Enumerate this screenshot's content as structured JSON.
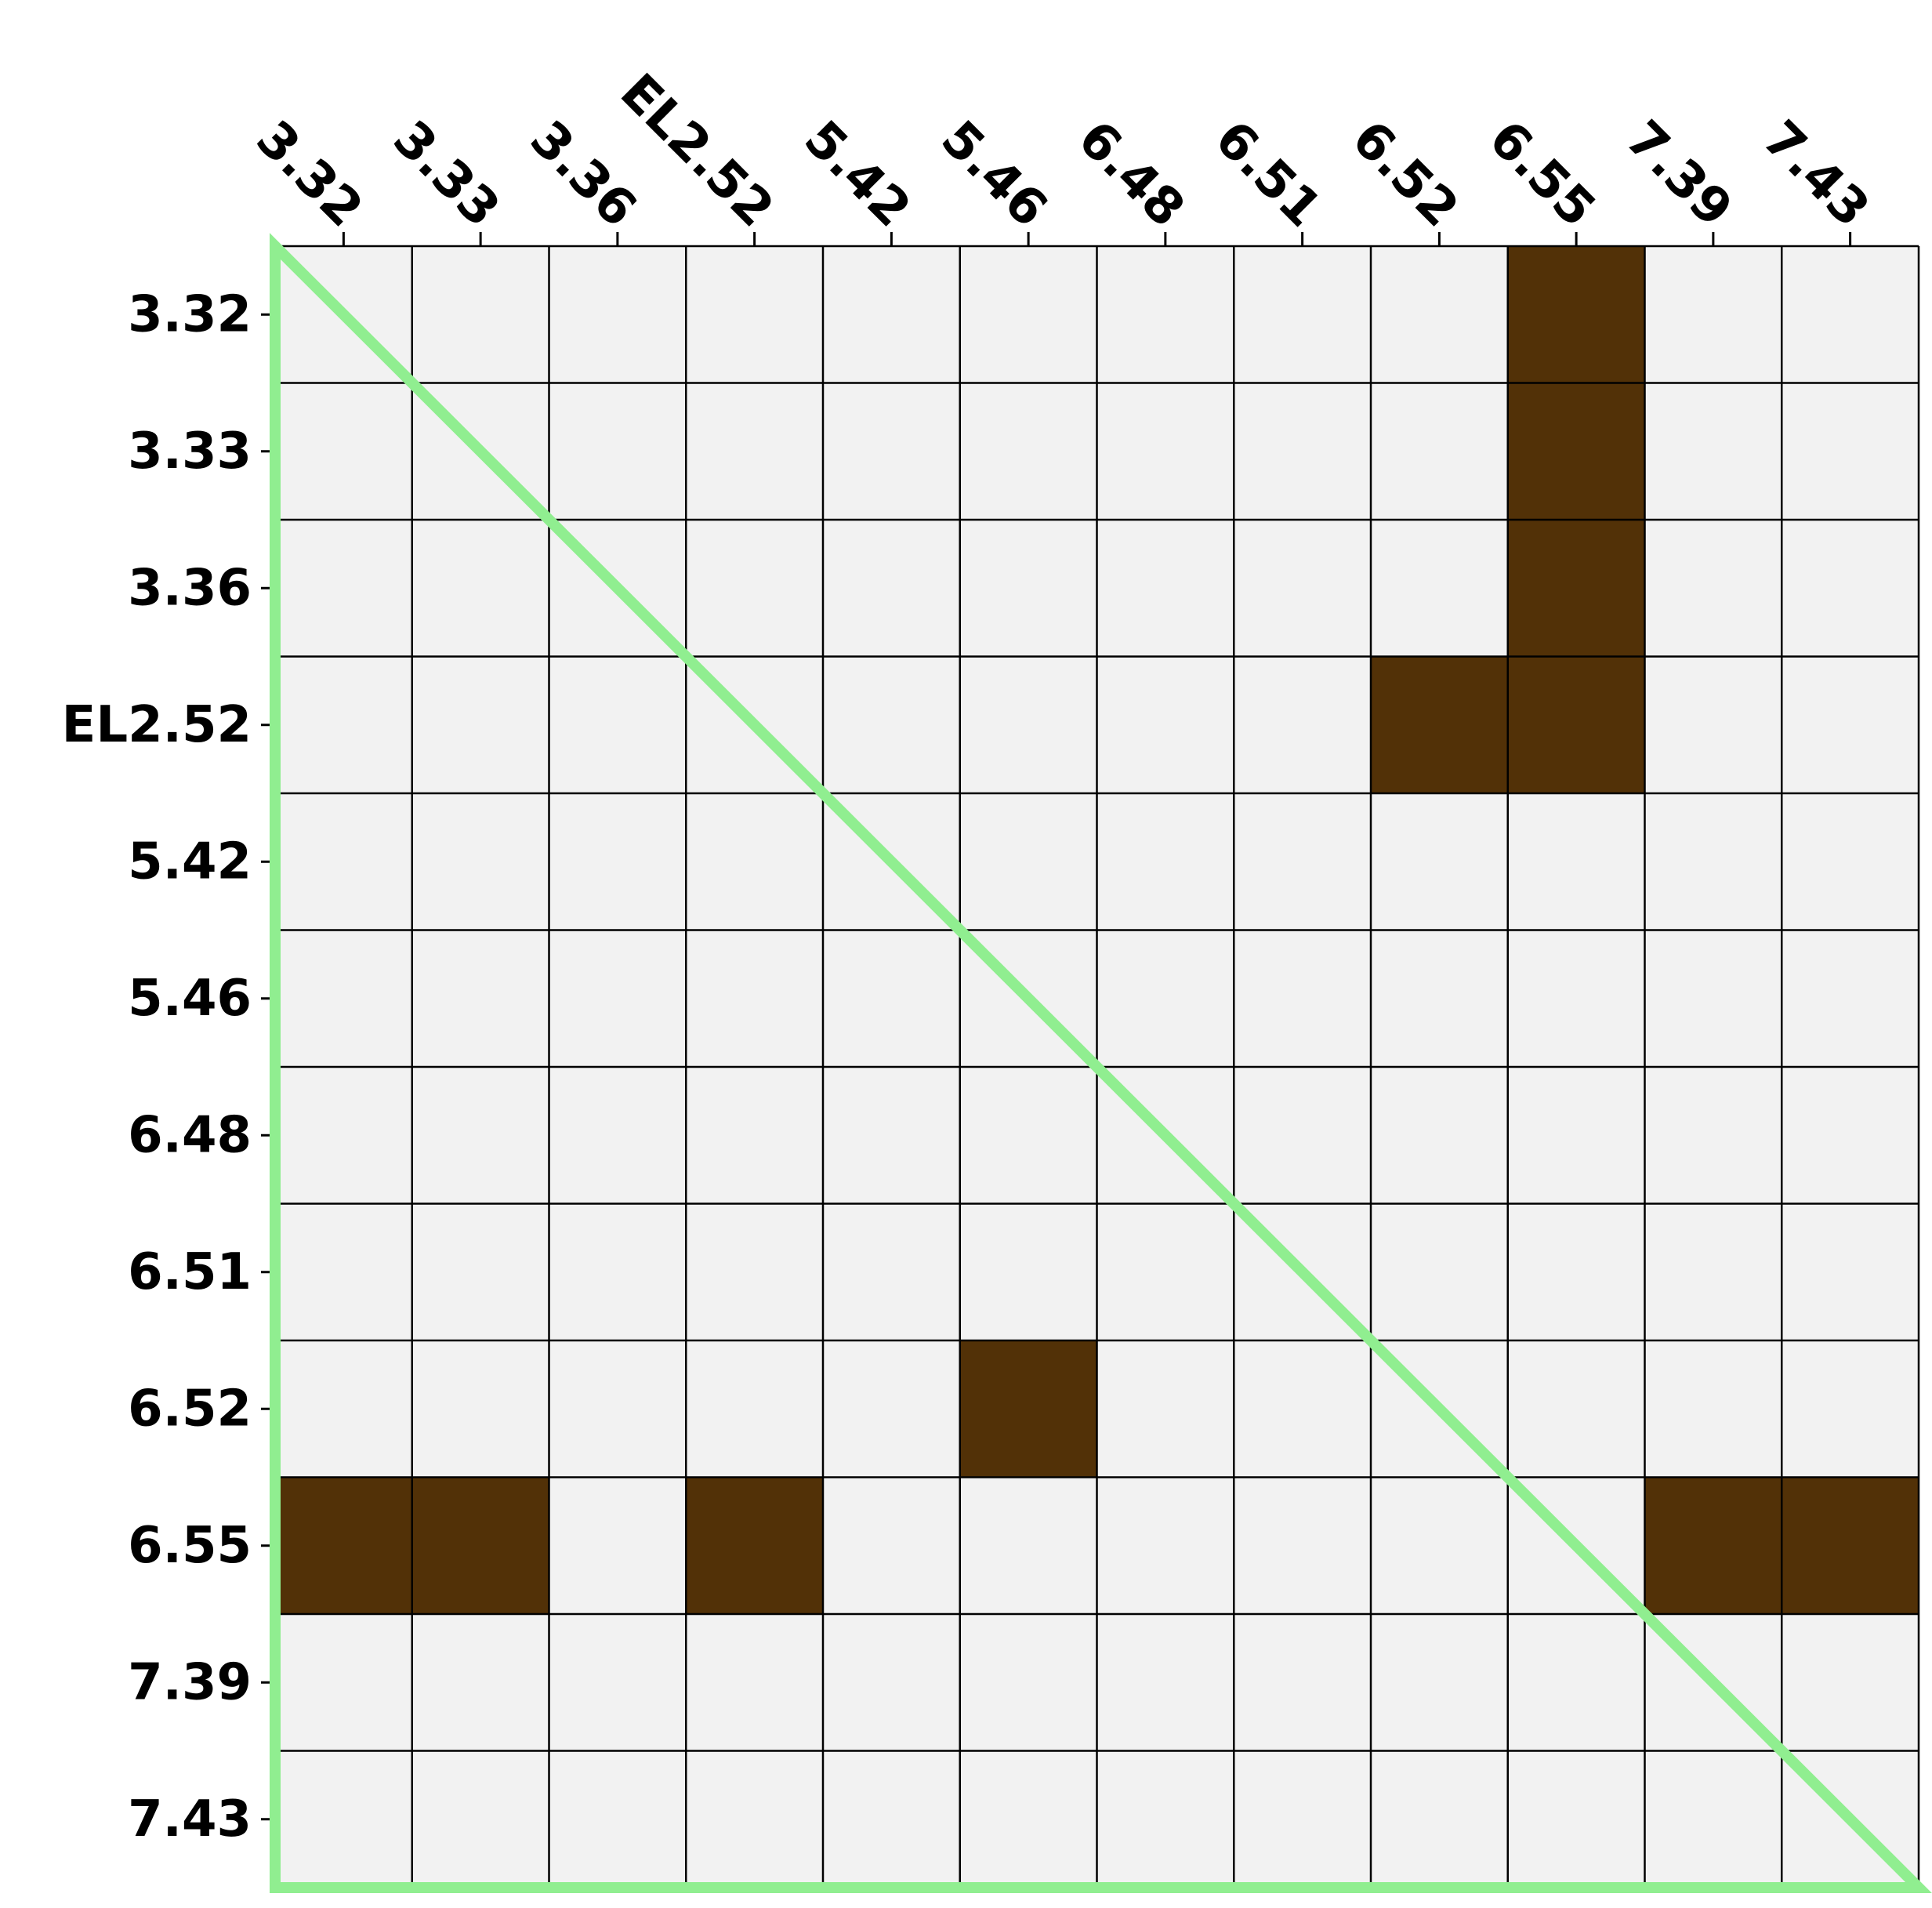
{
  "chart_data": {
    "type": "heatmap",
    "title": "",
    "xlabel": "",
    "ylabel": "",
    "x_tick_position": "top",
    "x_tick_rotation": "-45",
    "categories": [
      "3.32",
      "3.33",
      "3.36",
      "EL2.52",
      "5.42",
      "5.46",
      "6.48",
      "6.51",
      "6.52",
      "6.55",
      "7.39",
      "7.43"
    ],
    "values": [
      [
        0,
        0,
        0,
        0,
        0,
        0,
        0,
        0,
        0,
        1,
        0,
        0
      ],
      [
        0,
        0,
        0,
        0,
        0,
        0,
        0,
        0,
        0,
        1,
        0,
        0
      ],
      [
        0,
        0,
        0,
        0,
        0,
        0,
        0,
        0,
        0,
        1,
        0,
        0
      ],
      [
        0,
        0,
        0,
        0,
        0,
        0,
        0,
        0,
        1,
        1,
        0,
        0
      ],
      [
        0,
        0,
        0,
        0,
        0,
        0,
        0,
        0,
        0,
        0,
        0,
        0
      ],
      [
        0,
        0,
        0,
        0,
        0,
        0,
        0,
        0,
        0,
        0,
        0,
        0
      ],
      [
        0,
        0,
        0,
        0,
        0,
        0,
        0,
        0,
        0,
        0,
        0,
        0
      ],
      [
        0,
        0,
        0,
        0,
        0,
        0,
        0,
        0,
        0,
        0,
        0,
        0
      ],
      [
        0,
        0,
        0,
        0,
        0,
        1,
        0,
        0,
        0,
        0,
        0,
        0
      ],
      [
        1,
        1,
        0,
        1,
        0,
        0,
        0,
        0,
        0,
        0,
        1,
        1
      ],
      [
        0,
        0,
        0,
        0,
        0,
        0,
        0,
        0,
        0,
        0,
        0,
        0
      ],
      [
        0,
        0,
        0,
        0,
        0,
        0,
        0,
        0,
        0,
        0,
        0,
        0
      ]
    ],
    "colors": {
      "cell_on": "#523107",
      "cell_off": "#f2f2f2",
      "grid": "#000000",
      "outline": "#90ee90"
    },
    "grid": true,
    "outline": "lower-triangle"
  }
}
